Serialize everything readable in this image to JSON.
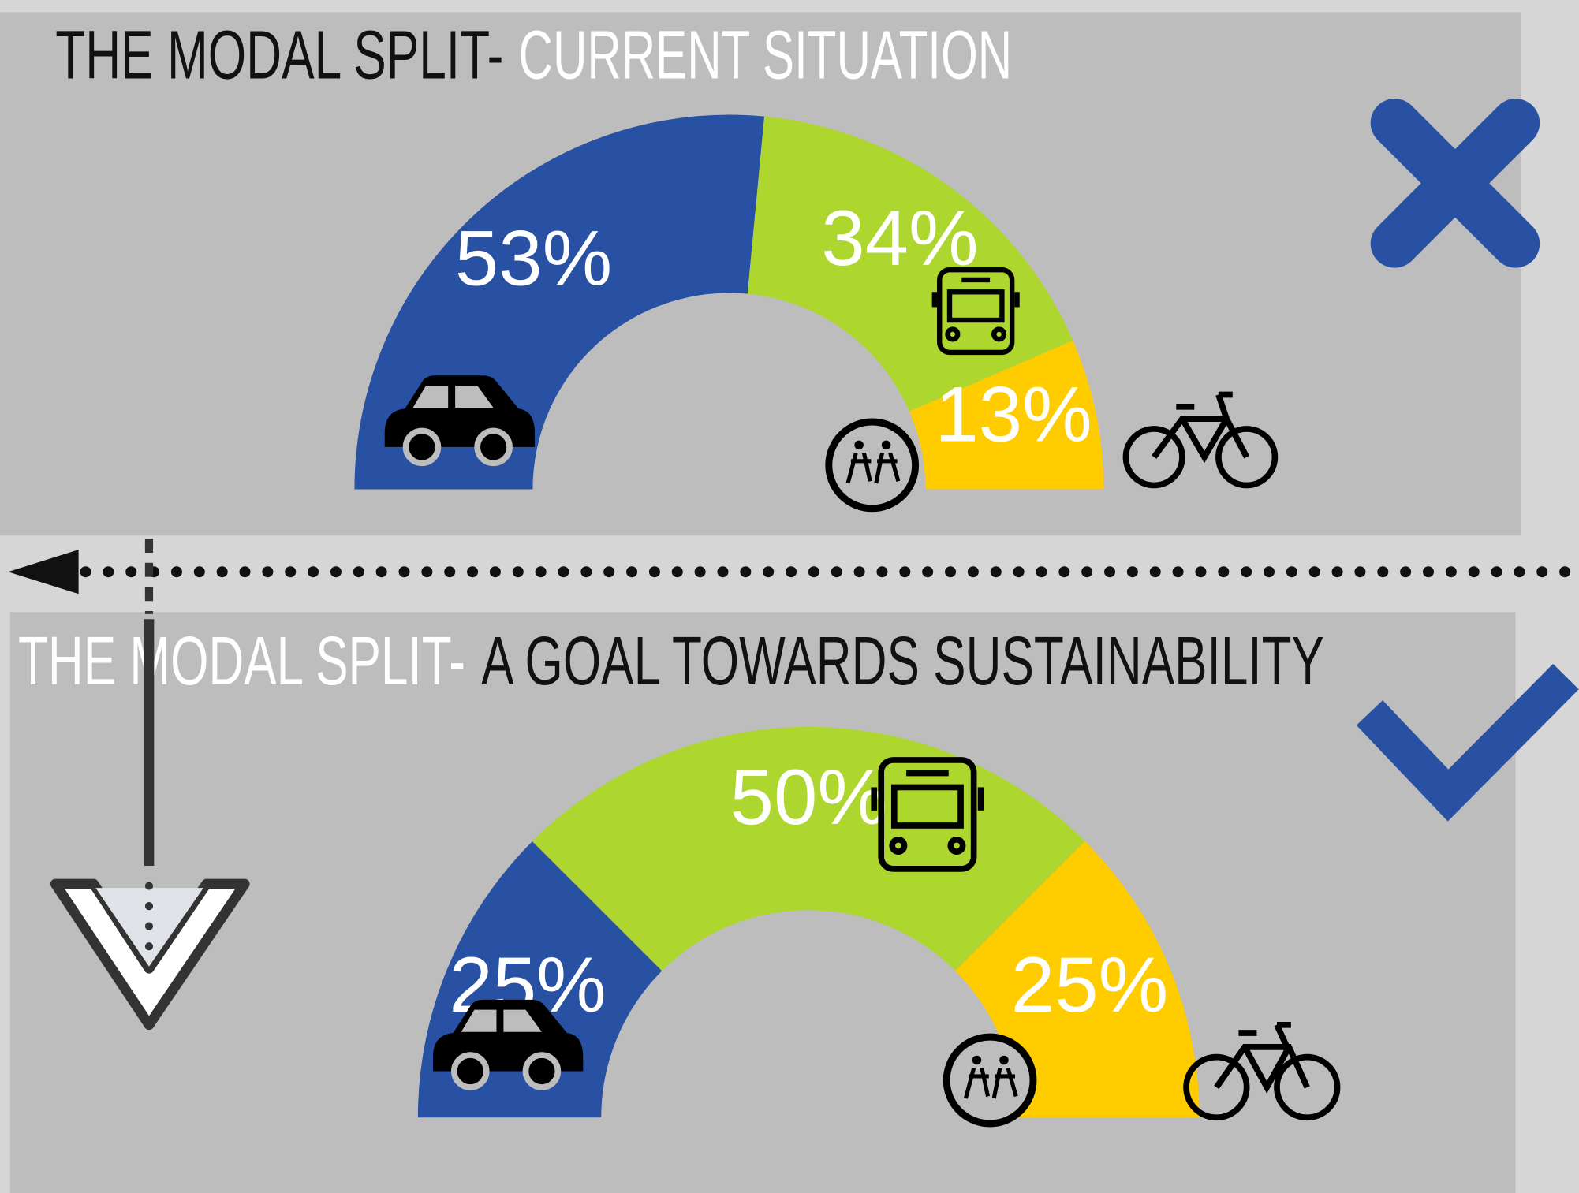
{
  "chart_data": [
    {
      "type": "pie",
      "title": [
        "THE MODAL SPLIT-",
        "CURRENT SITUATION"
      ],
      "values": [
        53,
        34,
        13
      ],
      "value_labels": [
        "53%",
        "34%",
        "13%"
      ],
      "colors": [
        "#2851a3",
        "#add62e",
        "#ffcc00"
      ]
    },
    {
      "type": "pie",
      "title": [
        "THE MODAL SPLIT-",
        "A GOAL TOWARDS SUSTAINABILITY"
      ],
      "values": [
        25,
        50,
        25
      ],
      "value_labels": [
        "25%",
        "50%",
        "25%"
      ],
      "colors": [
        "#2851a3",
        "#add62e",
        "#ffcc00"
      ]
    }
  ]
}
